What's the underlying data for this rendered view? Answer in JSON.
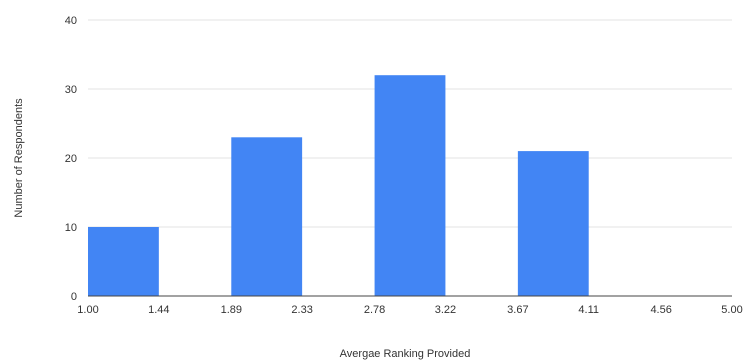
{
  "chart_data": {
    "type": "bar",
    "title": "",
    "xlabel": "Avergae Ranking Provided",
    "ylabel": "Number of Respondents",
    "x_ticks": [
      "1.00",
      "1.44",
      "1.89",
      "2.33",
      "2.78",
      "3.22",
      "3.67",
      "4.11",
      "4.56",
      "5.00"
    ],
    "y_ticks": [
      "0",
      "10",
      "20",
      "30",
      "40"
    ],
    "ylim": [
      0,
      40
    ],
    "xlim": [
      1.0,
      5.0
    ],
    "bins": [
      {
        "start": 1.0,
        "end": 1.44,
        "value": 10
      },
      {
        "start": 1.89,
        "end": 2.33,
        "value": 23
      },
      {
        "start": 2.78,
        "end": 3.22,
        "value": 32
      },
      {
        "start": 3.67,
        "end": 4.11,
        "value": 21
      }
    ],
    "grid": true,
    "bar_color": "#4285f4",
    "legend": "none"
  }
}
